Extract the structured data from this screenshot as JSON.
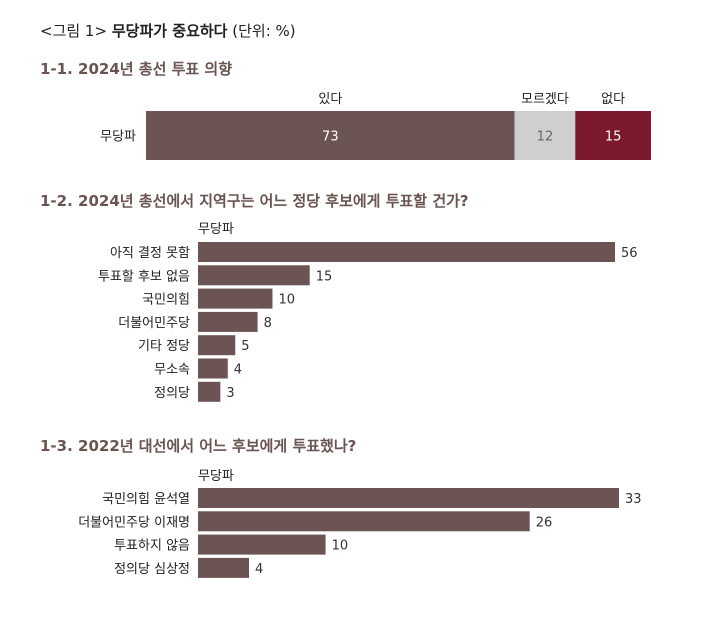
{
  "figure": {
    "prefix": "<그림 1>",
    "title": "무당파가 중요하다",
    "unit": "(단위: %)"
  },
  "colors": {
    "bar": "#6b5453",
    "mid": "#cfcfcf",
    "accent": "#7a1a2c"
  },
  "chart_data": [
    {
      "type": "bar",
      "orientation": "horizontal",
      "stacked": true,
      "title": "1-1. 2024년 총선 투표 의향",
      "categories": [
        "무당파"
      ],
      "series": [
        {
          "name": "있다",
          "values": [
            73
          ],
          "color": "#6b5453"
        },
        {
          "name": "모르겠다",
          "values": [
            12
          ],
          "color": "#cfcfcf"
        },
        {
          "name": "없다",
          "values": [
            15
          ],
          "color": "#7a1a2c"
        }
      ]
    },
    {
      "type": "bar",
      "orientation": "horizontal",
      "title": "1-2. 2024년 총선에서 지역구는 어느 정당 후보에게 투표할 건가?",
      "group_label": "무당파",
      "categories": [
        "아직 결정 못함",
        "투표할 후보 없음",
        "국민의힘",
        "더불어민주당",
        "기타 정당",
        "무소속",
        "정의당"
      ],
      "values": [
        56,
        15,
        10,
        8,
        5,
        4,
        3
      ]
    },
    {
      "type": "bar",
      "orientation": "horizontal",
      "title": "1-3. 2022년 대선에서 어느 후보에게 투표했나?",
      "group_label": "무당파",
      "categories": [
        "국민의힘 윤석열",
        "더불어민주당 이재명",
        "투표하지 않음",
        "정의당 심상정"
      ],
      "values": [
        33,
        26,
        10,
        4
      ]
    }
  ]
}
